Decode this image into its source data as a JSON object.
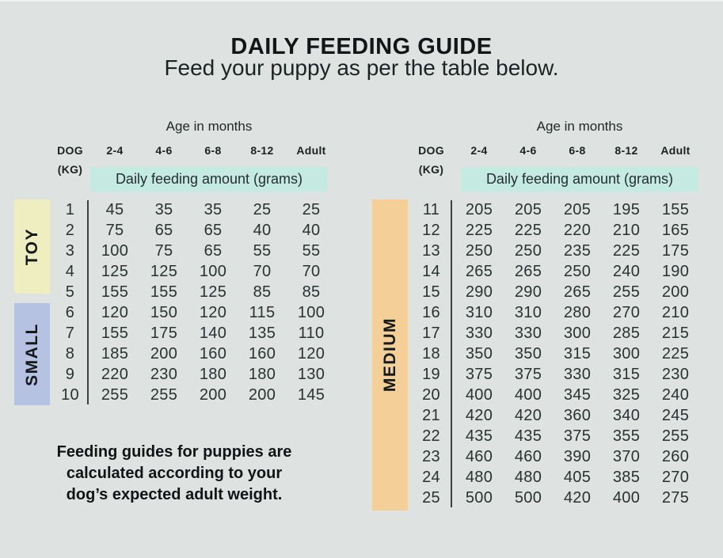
{
  "header": {
    "title": "DAILY FEEDING GUIDE",
    "subtitle": "Feed your puppy as per the table below."
  },
  "colors": {
    "background": "#dee2e1",
    "highlight_teal": "#c5eae2",
    "band_toy": "#efeec0",
    "band_small": "#b6c2e2",
    "band_medium": "#f4cf97"
  },
  "footnote_lines": [
    "Feeding guides for puppies are",
    "calculated according to your",
    "dog’s expected adult weight."
  ],
  "chart_data": [
    {
      "type": "table",
      "age_header": "Age in months",
      "dog_kg": [
        "DOG",
        "(KG)"
      ],
      "columns": [
        "2-4",
        "4-6",
        "6-8",
        "8-12",
        "Adult"
      ],
      "subheader": "Daily feeding amount (grams)",
      "bands": [
        {
          "label": "TOY",
          "kg_range": [
            1,
            5
          ]
        },
        {
          "label": "SMALL",
          "kg_range": [
            6,
            10
          ]
        }
      ],
      "rows": [
        {
          "kg": 1,
          "values": [
            45,
            35,
            35,
            25,
            25
          ]
        },
        {
          "kg": 2,
          "values": [
            75,
            65,
            65,
            40,
            40
          ]
        },
        {
          "kg": 3,
          "values": [
            100,
            75,
            65,
            55,
            55
          ]
        },
        {
          "kg": 4,
          "values": [
            125,
            125,
            100,
            70,
            70
          ]
        },
        {
          "kg": 5,
          "values": [
            155,
            155,
            125,
            85,
            85
          ]
        },
        {
          "kg": 6,
          "values": [
            120,
            150,
            120,
            115,
            100
          ]
        },
        {
          "kg": 7,
          "values": [
            155,
            175,
            140,
            135,
            110
          ]
        },
        {
          "kg": 8,
          "values": [
            185,
            200,
            160,
            160,
            120
          ]
        },
        {
          "kg": 9,
          "values": [
            220,
            230,
            180,
            180,
            130
          ]
        },
        {
          "kg": 10,
          "values": [
            255,
            255,
            200,
            200,
            145
          ]
        }
      ]
    },
    {
      "type": "table",
      "age_header": "Age in months",
      "dog_kg": [
        "DOG",
        "(KG)"
      ],
      "columns": [
        "2-4",
        "4-6",
        "6-8",
        "8-12",
        "Adult"
      ],
      "subheader": "Daily feeding amount (grams)",
      "bands": [
        {
          "label": "MEDIUM",
          "kg_range": [
            11,
            25
          ]
        }
      ],
      "rows": [
        {
          "kg": 11,
          "values": [
            205,
            205,
            205,
            195,
            155
          ]
        },
        {
          "kg": 12,
          "values": [
            225,
            225,
            220,
            210,
            165
          ]
        },
        {
          "kg": 13,
          "values": [
            250,
            250,
            235,
            225,
            175
          ]
        },
        {
          "kg": 14,
          "values": [
            265,
            265,
            250,
            240,
            190
          ]
        },
        {
          "kg": 15,
          "values": [
            290,
            290,
            265,
            255,
            200
          ]
        },
        {
          "kg": 16,
          "values": [
            310,
            310,
            280,
            270,
            210
          ]
        },
        {
          "kg": 17,
          "values": [
            330,
            330,
            300,
            285,
            215
          ]
        },
        {
          "kg": 18,
          "values": [
            350,
            350,
            315,
            300,
            225
          ]
        },
        {
          "kg": 19,
          "values": [
            375,
            375,
            330,
            315,
            230
          ]
        },
        {
          "kg": 20,
          "values": [
            400,
            400,
            345,
            325,
            240
          ]
        },
        {
          "kg": 21,
          "values": [
            420,
            420,
            360,
            340,
            245
          ]
        },
        {
          "kg": 22,
          "values": [
            435,
            435,
            375,
            355,
            255
          ]
        },
        {
          "kg": 23,
          "values": [
            460,
            460,
            390,
            370,
            260
          ]
        },
        {
          "kg": 24,
          "values": [
            480,
            480,
            405,
            385,
            270
          ]
        },
        {
          "kg": 25,
          "values": [
            500,
            500,
            420,
            400,
            275
          ]
        }
      ]
    }
  ]
}
